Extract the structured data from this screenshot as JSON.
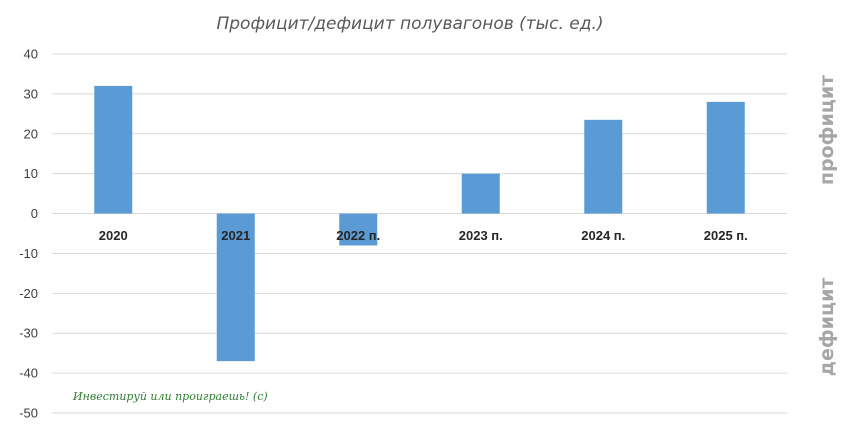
{
  "chart_data": {
    "type": "bar",
    "title": "Профицит/дефицит полувагонов (тыс. ед.)",
    "categories": [
      "2020",
      "2021",
      "2022 п.",
      "2023 п.",
      "2024 п.",
      "2025 п."
    ],
    "values": [
      32,
      -37,
      -8,
      10,
      23.5,
      28
    ],
    "ylim": [
      -50,
      40
    ],
    "yticks": [
      40,
      30,
      20,
      10,
      0,
      -10,
      -20,
      -30,
      -40,
      -50
    ],
    "grid": true,
    "legend": "none",
    "side_labels": {
      "positive": "профицит",
      "negative": "дефицит"
    },
    "annotation": "Инвестируй или проиграешь! (с)",
    "colors": {
      "bar": "#5b9bd5",
      "grid": "#d9d9d9",
      "annotation": "#2e7d32"
    }
  }
}
